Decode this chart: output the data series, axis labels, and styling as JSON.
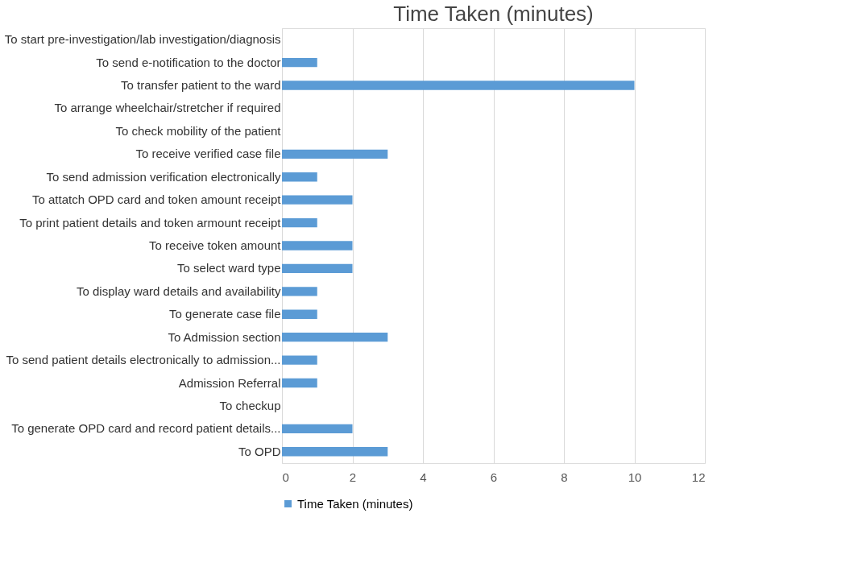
{
  "chart_data": {
    "type": "bar",
    "orientation": "horizontal",
    "title": "Time Taken (minutes)",
    "categories": [
      "To start pre-investigation/lab investigation/diagnosis",
      "To send e-notification to the doctor",
      "To transfer patient to the ward",
      "To arrange wheelchair/stretcher if required",
      "To check mobility of the patient",
      "To receive verified case file",
      "To send admission verification electronically",
      "To attatch OPD card and token amount receipt",
      "To print patient details and token armount receipt",
      "To receive token amount",
      "To select ward type",
      "To display ward details and availability",
      "To generate case file",
      "To Admission section",
      "To send patient details electronically to admission...",
      "Admission Referral",
      "To checkup",
      "To generate OPD card and record patient details...",
      "To OPD"
    ],
    "series": [
      {
        "name": "Time Taken (minutes)",
        "color": "#5b9bd5",
        "values": [
          0,
          1,
          10,
          0,
          0,
          3,
          1,
          2,
          1,
          2,
          2,
          1,
          1,
          3,
          1,
          1,
          0,
          2,
          3
        ]
      }
    ],
    "xlim": [
      0,
      12
    ],
    "xticks": [
      0,
      2,
      4,
      6,
      8,
      10,
      12
    ],
    "grid": "x",
    "legend": "bottom"
  }
}
